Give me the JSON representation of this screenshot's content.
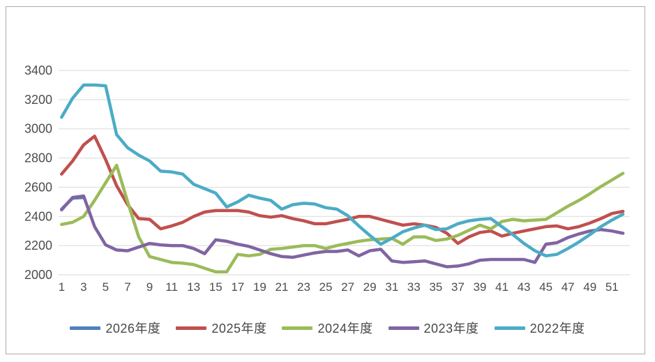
{
  "window": {
    "background": "#ffffff",
    "frame_border_color": "#acacac"
  },
  "chart_data": {
    "type": "line",
    "x_ticks": [
      1,
      3,
      5,
      7,
      9,
      11,
      13,
      15,
      17,
      19,
      21,
      23,
      25,
      27,
      29,
      31,
      33,
      35,
      37,
      39,
      41,
      43,
      45,
      47,
      49,
      51
    ],
    "x_range": [
      1,
      52
    ],
    "ylim": [
      2000,
      3400
    ],
    "y_ticks": [
      2000,
      2200,
      2400,
      2600,
      2800,
      3000,
      3200,
      3400
    ],
    "grid": "horizontal",
    "gridline_color": "#d9d9d9",
    "axis_text_color": "#4d4d4d",
    "legend_position": "bottom",
    "series": [
      {
        "name": "2026年度",
        "color": "#4F81BD",
        "values": [
          2450,
          2525,
          2530
        ]
      },
      {
        "name": "2025年度",
        "color": "#C0504D",
        "values": [
          2690,
          2780,
          2890,
          2950,
          2790,
          2610,
          2480,
          2385,
          2380,
          2315,
          2335,
          2360,
          2400,
          2430,
          2440,
          2440,
          2440,
          2430,
          2405,
          2395,
          2405,
          2385,
          2370,
          2350,
          2350,
          2365,
          2380,
          2400,
          2400,
          2380,
          2360,
          2340,
          2350,
          2340,
          2325,
          2285,
          2215,
          2260,
          2290,
          2300,
          2265,
          2285,
          2300,
          2315,
          2330,
          2335,
          2315,
          2330,
          2355,
          2385,
          2420,
          2435
        ]
      },
      {
        "name": "2024年度",
        "color": "#9BBB59",
        "values": [
          2345,
          2360,
          2400,
          2510,
          2630,
          2750,
          2500,
          2260,
          2125,
          2105,
          2085,
          2080,
          2070,
          2045,
          2020,
          2020,
          2140,
          2130,
          2140,
          2175,
          2180,
          2190,
          2200,
          2200,
          2180,
          2200,
          2215,
          2230,
          2240,
          2245,
          2250,
          2210,
          2260,
          2260,
          2235,
          2245,
          2270,
          2305,
          2340,
          2315,
          2365,
          2380,
          2370,
          2375,
          2380,
          2425,
          2470,
          2510,
          2555,
          2605,
          2650,
          2695
        ]
      },
      {
        "name": "2023年度",
        "color": "#8064A2",
        "values": [
          2445,
          2530,
          2540,
          2330,
          2205,
          2170,
          2165,
          2190,
          2215,
          2205,
          2200,
          2200,
          2180,
          2145,
          2240,
          2230,
          2210,
          2195,
          2170,
          2145,
          2125,
          2120,
          2135,
          2150,
          2160,
          2160,
          2170,
          2130,
          2165,
          2175,
          2095,
          2085,
          2090,
          2095,
          2075,
          2055,
          2060,
          2075,
          2100,
          2105,
          2105,
          2105,
          2105,
          2085,
          2210,
          2220,
          2255,
          2280,
          2300,
          2310,
          2300,
          2285
        ]
      },
      {
        "name": "2022年度",
        "color": "#4BACC6",
        "values": [
          3080,
          3210,
          3300,
          3300,
          3295,
          2960,
          2870,
          2820,
          2780,
          2710,
          2705,
          2690,
          2620,
          2590,
          2560,
          2465,
          2500,
          2545,
          2525,
          2510,
          2450,
          2480,
          2490,
          2485,
          2460,
          2450,
          2405,
          2335,
          2270,
          2210,
          2250,
          2295,
          2320,
          2340,
          2310,
          2315,
          2350,
          2370,
          2380,
          2385,
          2330,
          2275,
          2215,
          2165,
          2130,
          2140,
          2180,
          2225,
          2275,
          2330,
          2375,
          2415
        ]
      }
    ]
  }
}
